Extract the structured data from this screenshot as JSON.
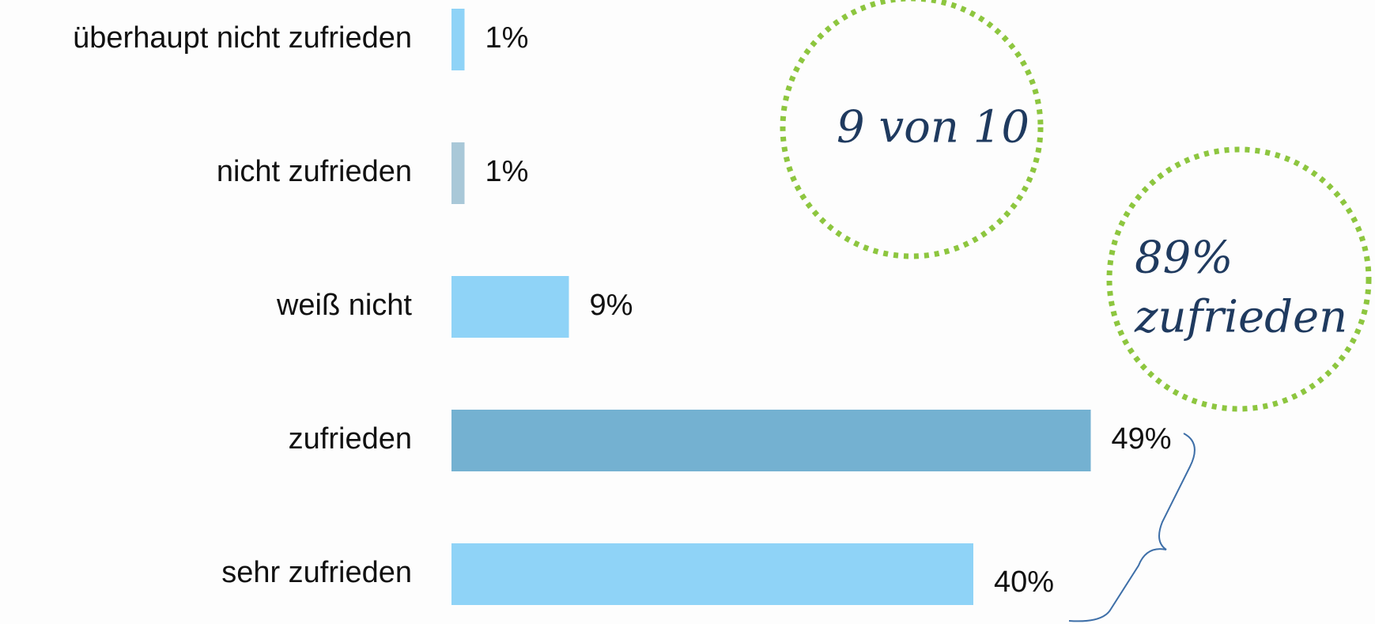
{
  "chart_data": {
    "type": "bar",
    "orientation": "horizontal",
    "categories": [
      "überhaupt nicht zufrieden",
      "nicht zufrieden",
      "weiß nicht",
      "zufrieden",
      "sehr zufrieden"
    ],
    "values": [
      1,
      1,
      9,
      49,
      40
    ],
    "value_labels": [
      "1%",
      "1%",
      "9%",
      "49%",
      "40%"
    ],
    "colors": [
      "#8fd3f7",
      "#a9c8d8",
      "#8fd3f7",
      "#74b1d1",
      "#8fd3f7"
    ],
    "annotations": [
      "9 von 10",
      "89%",
      "zufrieden"
    ]
  }
}
